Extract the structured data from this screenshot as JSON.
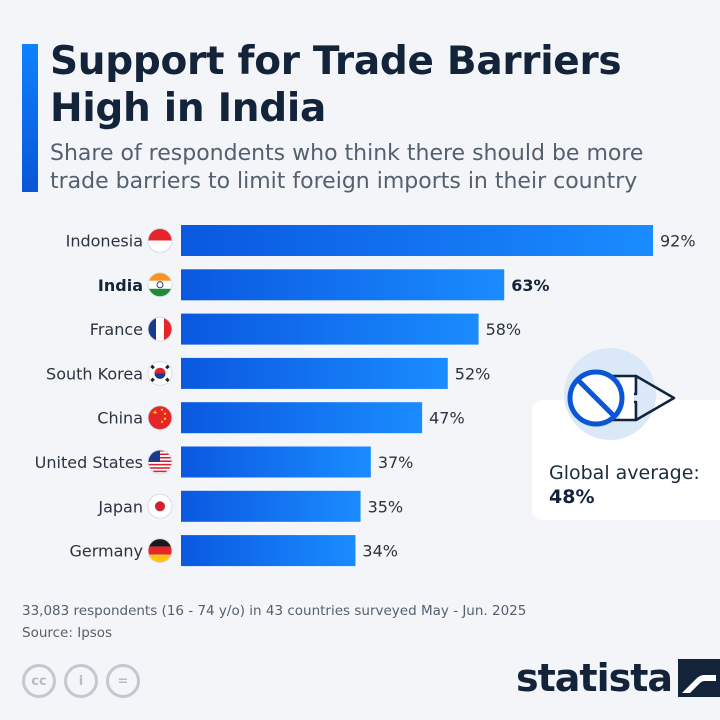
{
  "header": {
    "title": "Support for Trade Barriers High in India",
    "subtitle": "Share of respondents who think there should be more trade barriers to limit foreign imports in their country"
  },
  "chart_data": {
    "type": "bar",
    "orientation": "horizontal",
    "categories": [
      "Indonesia",
      "India",
      "France",
      "South Korea",
      "China",
      "United States",
      "Japan",
      "Germany"
    ],
    "values": [
      92,
      63,
      58,
      52,
      47,
      37,
      35,
      34
    ],
    "value_labels": [
      "92%",
      "63%",
      "58%",
      "52%",
      "47%",
      "37%",
      "35%",
      "34%"
    ],
    "highlighted": [
      "India"
    ],
    "unit": "%",
    "xlim": [
      0,
      100
    ],
    "grid": false,
    "colors": {
      "bar_start": "#0a58e0",
      "bar_end": "#1a8cff",
      "text": "#2a3441"
    },
    "flags": [
      "indonesia-flag-icon",
      "india-flag-icon",
      "france-flag-icon",
      "south-korea-flag-icon",
      "china-flag-icon",
      "united-states-flag-icon",
      "japan-flag-icon",
      "germany-flag-icon"
    ]
  },
  "average": {
    "label": "Global average:",
    "value": "48%",
    "icon": "no-entry-arrow-icon"
  },
  "footer": {
    "note": "33,083 respondents (16 - 74 y/o) in 43 countries surveyed May - Jun. 2025",
    "source": "Source: Ipsos",
    "license_icons": [
      "cc-icon",
      "attribution-icon",
      "no-derivatives-icon"
    ],
    "license_glyphs": [
      "cc",
      "i",
      "="
    ],
    "brand": "statista"
  },
  "colors": {
    "accent": "#0a6cf0",
    "background": "#f3f5f8",
    "title": "#12233a"
  }
}
